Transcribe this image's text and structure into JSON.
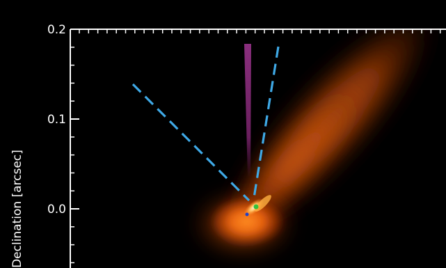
{
  "chart_data": {
    "type": "image",
    "ylabel": "Declination [arcsec]",
    "yticks": [
      {
        "value": 0.2,
        "label": "0.2"
      },
      {
        "value": 0.1,
        "label": "0.1"
      },
      {
        "value": 0.0,
        "label": "0.0"
      }
    ],
    "ylim": [
      -0.065,
      0.2
    ],
    "colors": {
      "background": "#000000",
      "frame": "#ffffff",
      "dashed_lines": "#3fa9e6",
      "purple_bar": "#7a2a6e",
      "emission_core": "#ffe6b0",
      "emission_mid": "#ff8a1e",
      "emission_outer": "#b03a00"
    },
    "features": [
      {
        "name": "dashed-line-left",
        "style": "dashed",
        "color": "dashed_lines"
      },
      {
        "name": "dashed-line-right",
        "style": "dashed",
        "color": "dashed_lines"
      },
      {
        "name": "purple-bar",
        "color": "purple_bar"
      }
    ]
  }
}
